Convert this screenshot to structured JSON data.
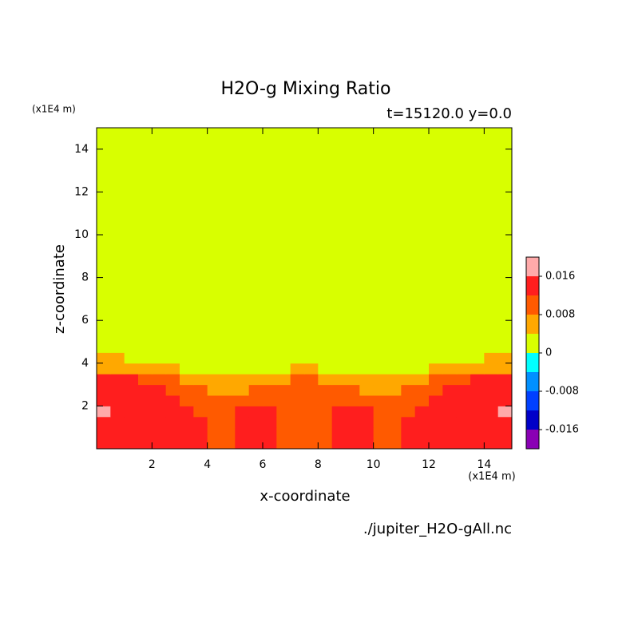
{
  "chart_data": {
    "type": "contourf",
    "title": "H2O-g Mixing Ratio",
    "subtitle": "t=15120.0 y=0.0",
    "y_unit": "(x1E4 m)",
    "x_unit": "(x1E4 m)",
    "xlabel": "x-coordinate",
    "ylabel": "z-coordinate",
    "footer": "./jupiter_H2O-gAll.nc",
    "xlim": [
      0,
      15
    ],
    "ylim": [
      0,
      15
    ],
    "xticks": [
      2,
      4,
      6,
      8,
      10,
      12,
      14
    ],
    "yticks": [
      2,
      4,
      6,
      8,
      10,
      12,
      14
    ],
    "x_edges": [
      0,
      0.5,
      1,
      1.5,
      2,
      2.5,
      3,
      3.5,
      4,
      4.5,
      5,
      5.5,
      6,
      6.5,
      7,
      7.5,
      8,
      8.5,
      9,
      9.5,
      10,
      10.5,
      11,
      11.5,
      12,
      12.5,
      13,
      13.5,
      14,
      14.5,
      15
    ],
    "y_edges": [
      0,
      0.5,
      1,
      1.5,
      2,
      2.5,
      3,
      3.5,
      4,
      4.5,
      15
    ],
    "z": [
      [
        0.014,
        0.014,
        0.014,
        0.014,
        0.014,
        0.014,
        0.014,
        0.014,
        0.01,
        0.01,
        0.014,
        0.014,
        0.014,
        0.01,
        0.01,
        0.01,
        0.01,
        0.014,
        0.014,
        0.014,
        0.01,
        0.01,
        0.014,
        0.014,
        0.014,
        0.014,
        0.014,
        0.014,
        0.014,
        0.014
      ],
      [
        0.014,
        0.014,
        0.014,
        0.014,
        0.014,
        0.014,
        0.014,
        0.014,
        0.01,
        0.01,
        0.014,
        0.014,
        0.014,
        0.01,
        0.01,
        0.01,
        0.01,
        0.014,
        0.014,
        0.014,
        0.01,
        0.01,
        0.014,
        0.014,
        0.014,
        0.014,
        0.014,
        0.014,
        0.014,
        0.014
      ],
      [
        0.014,
        0.014,
        0.014,
        0.014,
        0.014,
        0.014,
        0.014,
        0.014,
        0.01,
        0.01,
        0.014,
        0.014,
        0.014,
        0.01,
        0.01,
        0.01,
        0.01,
        0.014,
        0.014,
        0.014,
        0.01,
        0.01,
        0.014,
        0.014,
        0.014,
        0.014,
        0.014,
        0.014,
        0.014,
        0.014
      ],
      [
        0.018,
        0.014,
        0.014,
        0.014,
        0.014,
        0.014,
        0.014,
        0.01,
        0.01,
        0.01,
        0.014,
        0.014,
        0.014,
        0.01,
        0.01,
        0.01,
        0.01,
        0.014,
        0.014,
        0.014,
        0.01,
        0.01,
        0.01,
        0.014,
        0.014,
        0.014,
        0.014,
        0.014,
        0.014,
        0.018
      ],
      [
        0.014,
        0.014,
        0.014,
        0.014,
        0.014,
        0.014,
        0.01,
        0.01,
        0.01,
        0.01,
        0.01,
        0.01,
        0.01,
        0.01,
        0.01,
        0.01,
        0.01,
        0.01,
        0.01,
        0.01,
        0.01,
        0.01,
        0.01,
        0.01,
        0.014,
        0.014,
        0.014,
        0.014,
        0.014,
        0.014
      ],
      [
        0.014,
        0.014,
        0.014,
        0.014,
        0.014,
        0.01,
        0.01,
        0.01,
        0.006,
        0.006,
        0.006,
        0.01,
        0.01,
        0.01,
        0.01,
        0.01,
        0.01,
        0.01,
        0.01,
        0.006,
        0.006,
        0.006,
        0.01,
        0.01,
        0.01,
        0.014,
        0.014,
        0.014,
        0.014,
        0.014
      ],
      [
        0.014,
        0.014,
        0.014,
        0.01,
        0.01,
        0.01,
        0.006,
        0.006,
        0.006,
        0.006,
        0.006,
        0.006,
        0.006,
        0.006,
        0.01,
        0.01,
        0.006,
        0.006,
        0.006,
        0.006,
        0.006,
        0.006,
        0.006,
        0.006,
        0.01,
        0.01,
        0.01,
        0.014,
        0.014,
        0.014
      ],
      [
        0.006,
        0.006,
        0.006,
        0.006,
        0.006,
        0.006,
        0.002,
        0.002,
        0.002,
        0.002,
        0.002,
        0.002,
        0.002,
        0.002,
        0.006,
        0.006,
        0.002,
        0.002,
        0.002,
        0.002,
        0.002,
        0.002,
        0.002,
        0.002,
        0.006,
        0.006,
        0.006,
        0.006,
        0.006,
        0.006
      ],
      [
        0.006,
        0.006,
        0.002,
        0.002,
        0.002,
        0.002,
        0.002,
        0.002,
        0.002,
        0.002,
        0.002,
        0.002,
        0.002,
        0.002,
        0.002,
        0.002,
        0.002,
        0.002,
        0.002,
        0.002,
        0.002,
        0.002,
        0.002,
        0.002,
        0.002,
        0.002,
        0.002,
        0.002,
        0.006,
        0.006
      ],
      [
        0.002,
        0.002,
        0.002,
        0.002,
        0.002,
        0.002,
        0.002,
        0.002,
        0.002,
        0.002,
        0.002,
        0.002,
        0.002,
        0.002,
        0.002,
        0.002,
        0.002,
        0.002,
        0.002,
        0.002,
        0.002,
        0.002,
        0.002,
        0.002,
        0.002,
        0.002,
        0.002,
        0.002,
        0.002,
        0.002
      ]
    ],
    "levels": [
      -0.02,
      -0.016,
      -0.012,
      -0.008,
      -0.004,
      0,
      0.004,
      0.008,
      0.012,
      0.016,
      0.02
    ],
    "colors": [
      "#8a00b4",
      "#0000c8",
      "#0040ff",
      "#0090ff",
      "#00ffff",
      "#d8ff00",
      "#ffa800",
      "#ff5a00",
      "#ff1e1e",
      "#ffaaaa"
    ],
    "cbar_ticks": [
      -0.016,
      -0.008,
      0,
      0.008,
      0.016
    ]
  }
}
